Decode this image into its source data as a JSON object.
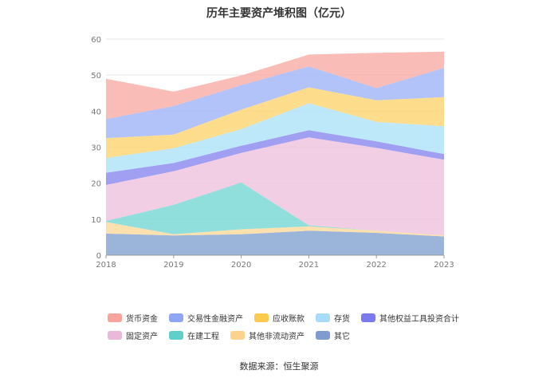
{
  "chart_data": {
    "type": "area",
    "stacked": true,
    "title": "历年主要资产堆积图（亿元）",
    "xlabel": "",
    "ylabel": "",
    "x": [
      "2018",
      "2019",
      "2020",
      "2021",
      "2022",
      "2023"
    ],
    "ylim": [
      0,
      60
    ],
    "yticks": [
      0,
      10,
      20,
      30,
      40,
      50,
      60
    ],
    "grid": true,
    "legend_position": "bottom",
    "series": [
      {
        "name": "其它",
        "color": "#8aa7d4",
        "values": [
          6.0,
          5.5,
          5.8,
          6.8,
          6.2,
          5.2
        ]
      },
      {
        "name": "其他非流动资产",
        "color": "#fcdba0",
        "values": [
          3.2,
          0.3,
          1.4,
          1.2,
          0.6,
          0.3
        ]
      },
      {
        "name": "在建工程",
        "color": "#7dd9d6",
        "values": [
          0.3,
          8.2,
          13.0,
          0.3,
          0.0,
          0.0
        ]
      },
      {
        "name": "固定资产",
        "color": "#f0c6df",
        "values": [
          10.0,
          9.3,
          8.2,
          24.4,
          23.0,
          21.0
        ]
      },
      {
        "name": "其他权益工具投资合计",
        "color": "#8f8ef0",
        "values": [
          3.4,
          2.3,
          2.0,
          2.0,
          1.8,
          1.6
        ]
      },
      {
        "name": "存货",
        "color": "#b2e4f9",
        "values": [
          4.1,
          4.1,
          4.6,
          7.5,
          5.4,
          7.7
        ]
      },
      {
        "name": "应收账款",
        "color": "#fdd677",
        "values": [
          5.5,
          3.8,
          5.4,
          4.4,
          6.0,
          8.1
        ]
      },
      {
        "name": "交易性金融资产",
        "color": "#a5b8f8",
        "values": [
          5.3,
          7.9,
          6.8,
          5.8,
          3.4,
          8.1
        ]
      },
      {
        "name": "货币资金",
        "color": "#f9b0a9",
        "values": [
          11.2,
          4.0,
          2.7,
          3.3,
          9.8,
          4.5
        ]
      }
    ],
    "legend": [
      {
        "name": "货币资金",
        "color": "#f9a49a"
      },
      {
        "name": "交易性金融资产",
        "color": "#8fa6f7"
      },
      {
        "name": "应收账款",
        "color": "#fccb4c"
      },
      {
        "name": "存货",
        "color": "#a6dcf7"
      },
      {
        "name": "其他权益工具投资合计",
        "color": "#7b79ee"
      },
      {
        "name": "固定资产",
        "color": "#eab8d8"
      },
      {
        "name": "在建工程",
        "color": "#5fcfcb"
      },
      {
        "name": "其他非流动资产",
        "color": "#fcd28c"
      },
      {
        "name": "其它",
        "color": "#7e9cd0"
      }
    ]
  },
  "source": "数据来源：恒生聚源"
}
